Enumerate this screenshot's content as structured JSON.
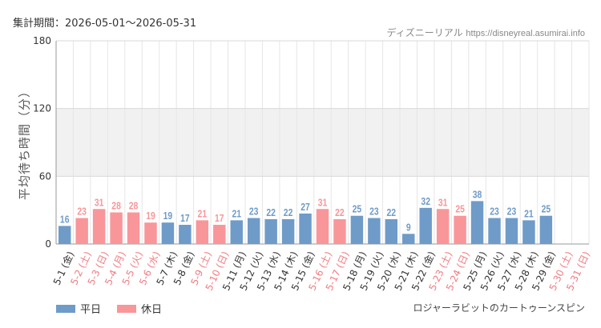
{
  "header": {
    "period_label": "集計期間：2026-05-01～2026-05-31",
    "site_name": "ディズニーリアル",
    "site_url": "https://disneyreal.asumirai.info"
  },
  "footer": {
    "attraction": "ロジャーラビットのカートゥーンスピン"
  },
  "colors": {
    "weekday": "#6f9bc9",
    "holiday": "#f9969a",
    "grid": "#e6e6e6",
    "band": "#f1f1f1"
  },
  "chart_data": {
    "type": "bar",
    "ylabel": "平均待ち時間（分）",
    "ylim": [
      0,
      180
    ],
    "yticks": [
      0,
      60,
      120,
      180
    ],
    "categories": [
      "5-1 (金)",
      "5-2 (土)",
      "5-3 (日)",
      "5-4 (月)",
      "5-5 (火)",
      "5-6 (水)",
      "5-7 (木)",
      "5-8 (金)",
      "5-9 (土)",
      "5-10 (日)",
      "5-11 (月)",
      "5-12 (火)",
      "5-13 (水)",
      "5-14 (木)",
      "5-15 (金)",
      "5-16 (土)",
      "5-17 (日)",
      "5-18 (月)",
      "5-19 (火)",
      "5-20 (水)",
      "5-21 (木)",
      "5-22 (金)",
      "5-23 (土)",
      "5-24 (日)",
      "5-25 (月)",
      "5-26 (火)",
      "5-27 (水)",
      "5-28 (木)",
      "5-29 (金)",
      "5-30 (土)",
      "5-31 (日)"
    ],
    "values": [
      16,
      23,
      31,
      28,
      28,
      19,
      19,
      17,
      21,
      17,
      21,
      23,
      22,
      22,
      27,
      31,
      22,
      25,
      23,
      22,
      9,
      32,
      31,
      25,
      38,
      23,
      23,
      21,
      25,
      null,
      null
    ],
    "holiday": [
      false,
      true,
      true,
      true,
      true,
      true,
      false,
      false,
      true,
      true,
      false,
      false,
      false,
      false,
      false,
      true,
      true,
      false,
      false,
      false,
      false,
      false,
      true,
      true,
      false,
      false,
      false,
      false,
      false,
      true,
      true
    ],
    "series": [
      {
        "name": "平日"
      },
      {
        "name": "休日"
      }
    ]
  }
}
